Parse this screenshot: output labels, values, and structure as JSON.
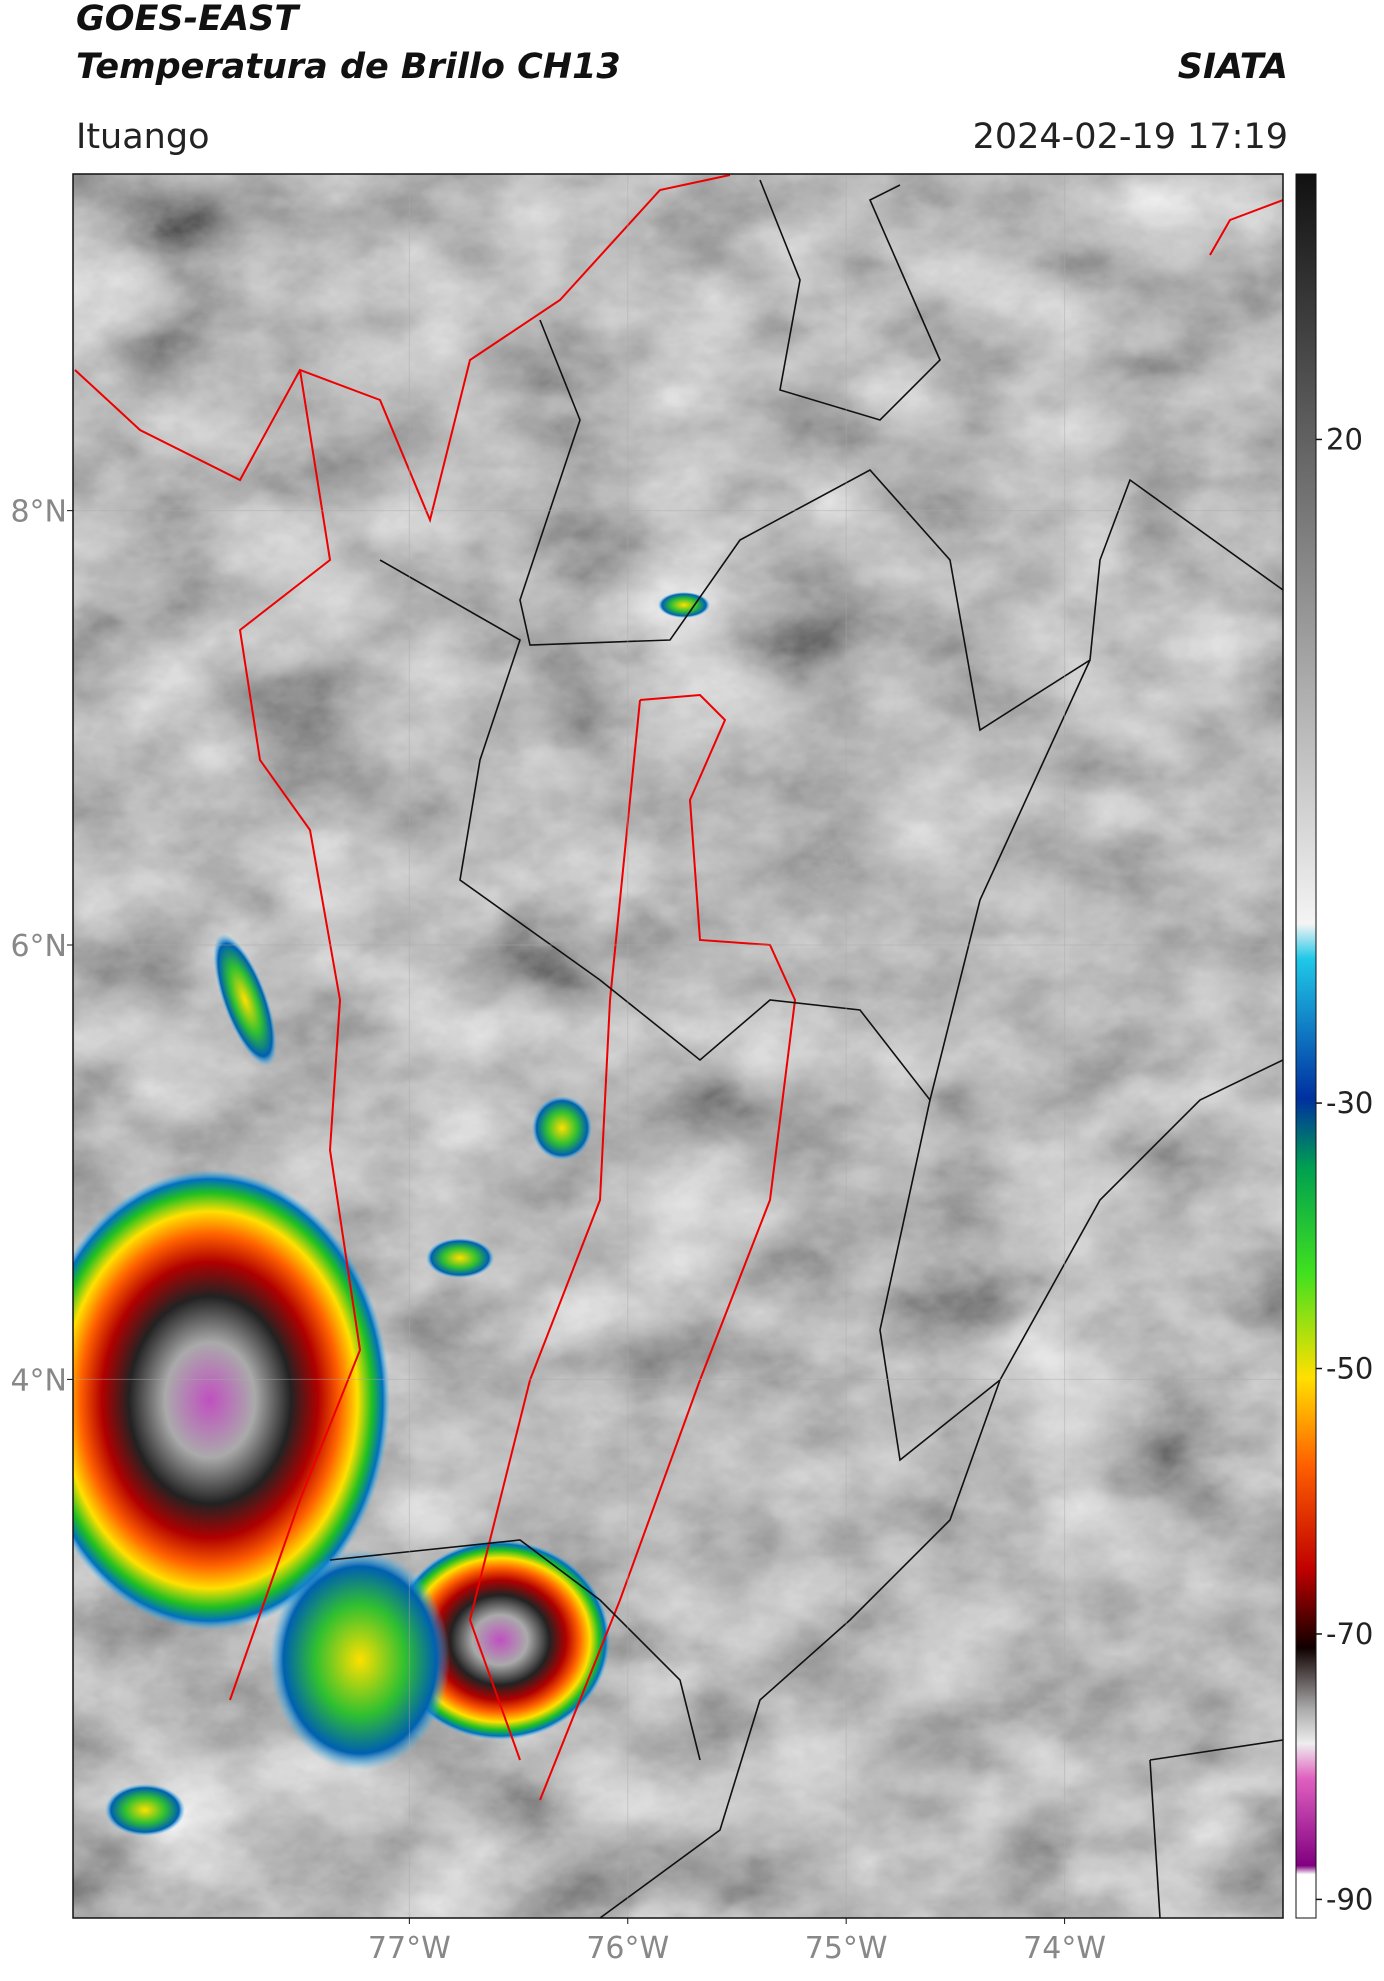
{
  "header": {
    "title": "GOES-EAST",
    "subtitle": "Temperatura de Brillo CH13",
    "brand": "SIATA",
    "region": "Ituango",
    "datetime": "2024-02-19 17:19"
  },
  "map": {
    "latlim": [
      1.52,
      9.55
    ],
    "lonlim": [
      -78.54,
      -73.0
    ],
    "latticks": [
      {
        "value": 8,
        "label": "8°N"
      },
      {
        "value": 6,
        "label": "6°N"
      },
      {
        "value": 4,
        "label": "4°N"
      }
    ],
    "lonticks": [
      {
        "value": -77,
        "label": "77°W"
      },
      {
        "value": -76,
        "label": "76°W"
      },
      {
        "value": -75,
        "label": "75°W"
      },
      {
        "value": -74,
        "label": "74°W"
      }
    ],
    "grid": true
  },
  "colorbar": {
    "lim": [
      -91.4,
      40
    ],
    "ticks": [
      20,
      -30,
      -50,
      -70,
      -90
    ]
  }
}
